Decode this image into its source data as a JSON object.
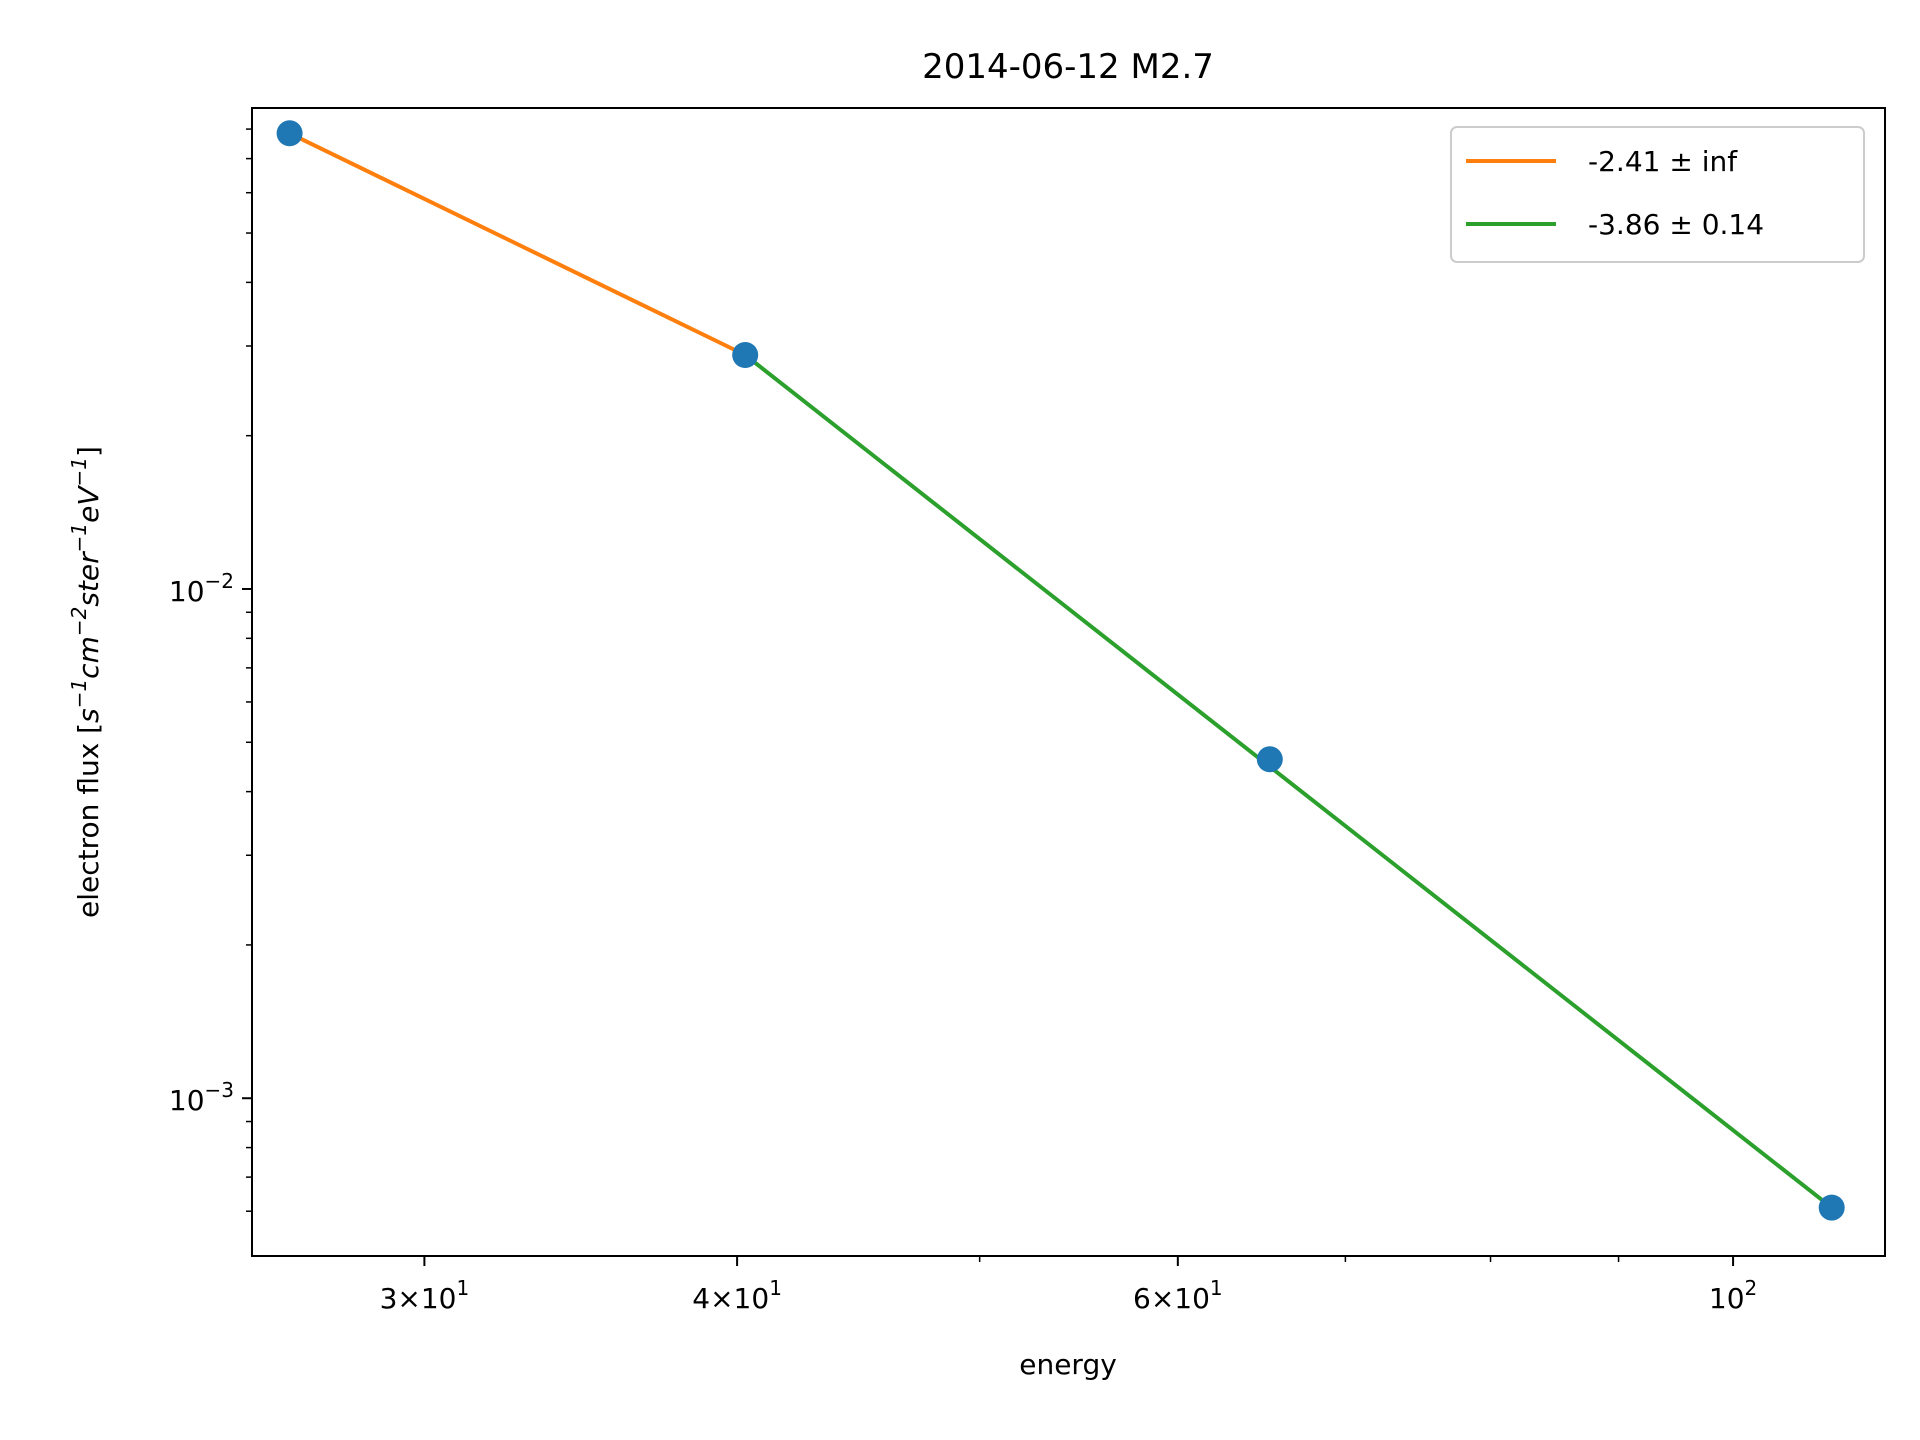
{
  "chart_data": {
    "type": "scatter",
    "title": "2014-06-12 M2.7",
    "xlabel": "energy",
    "ylabel_text": "electron flux [",
    "ylabel_math": "s^-1 cm^-2 ster^-1 eV^-1",
    "ylabel_close": "]",
    "x_scale": "log",
    "y_scale": "log",
    "xlim": [
      25.6,
      115
    ],
    "ylim": [
      0.00049,
      0.088
    ],
    "grid": false,
    "legend_position": "upper right",
    "points": {
      "color": "#1f77b4",
      "x": [
        26.5,
        40.3,
        65.3,
        109.5
      ],
      "y": [
        0.0785,
        0.0288,
        0.00463,
        0.00061
      ]
    },
    "x_ticks": [
      {
        "value": 30,
        "mantissa": "3",
        "base": "10",
        "exp": "1"
      },
      {
        "value": 40,
        "mantissa": "4",
        "base": "10",
        "exp": "1"
      },
      {
        "value": 60,
        "mantissa": "6",
        "base": "10",
        "exp": "1"
      },
      {
        "value": 100,
        "mantissa": "",
        "base": "10",
        "exp": "2"
      }
    ],
    "x_minor_ticks": [
      50,
      70,
      80,
      90
    ],
    "y_ticks": [
      {
        "value": 0.01,
        "base": "10",
        "exp": "−2"
      },
      {
        "value": 0.001,
        "base": "10",
        "exp": "−3"
      }
    ],
    "y_minor_ticks": [
      0.0006,
      0.0007,
      0.0008,
      0.0009,
      0.002,
      0.003,
      0.004,
      0.005,
      0.006,
      0.007,
      0.008,
      0.009,
      0.02,
      0.03,
      0.04,
      0.05,
      0.06,
      0.07,
      0.08
    ],
    "series": [
      {
        "name": "-2.41 ± inf",
        "color": "#ff7f0e",
        "x": [
          26.5,
          40.3
        ],
        "y": [
          0.0785,
          0.0288
        ]
      },
      {
        "name": "-3.86 ± 0.14",
        "color": "#2ca02c",
        "x": [
          40.3,
          109.5
        ],
        "y": [
          0.0288,
          0.00061
        ]
      }
    ]
  }
}
